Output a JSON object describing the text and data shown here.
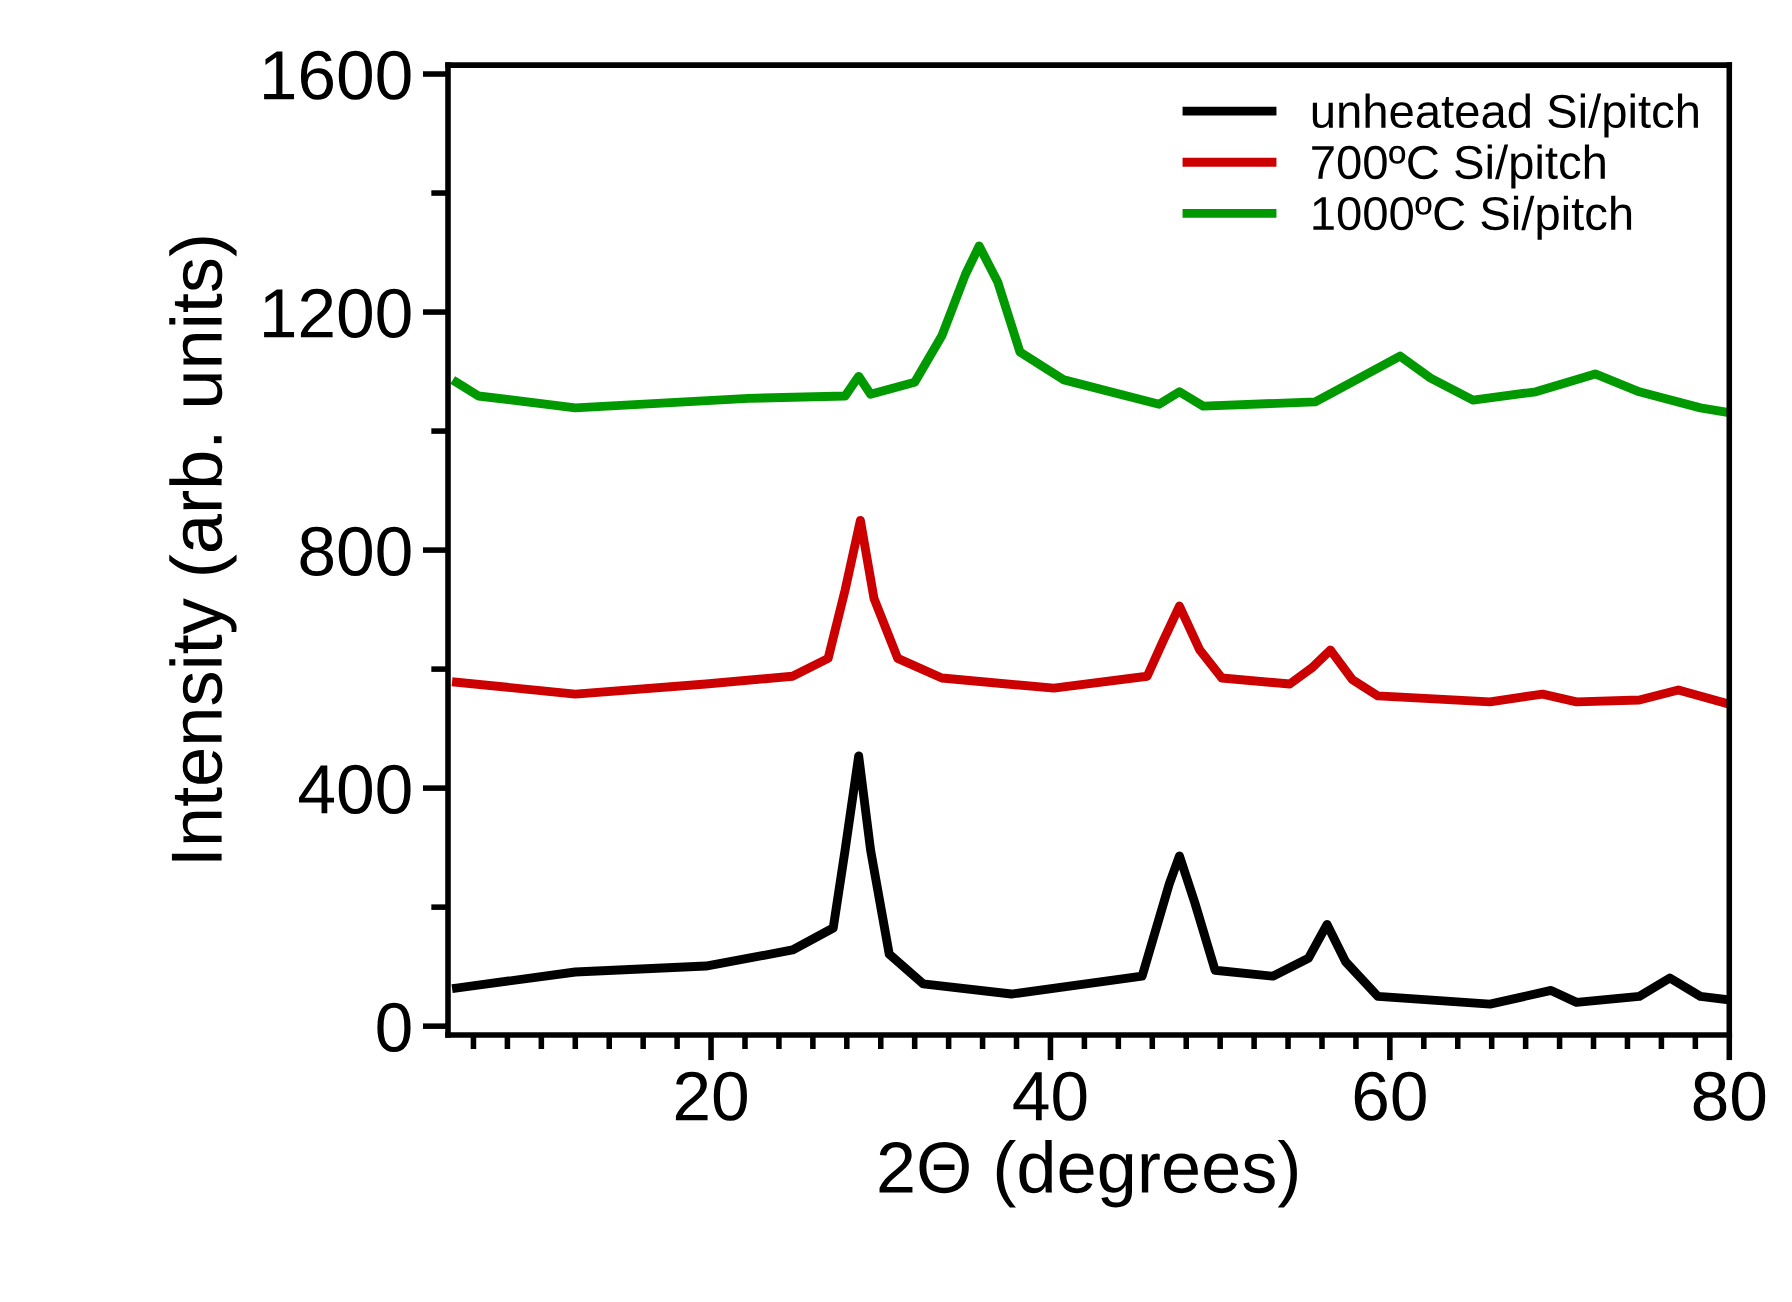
{
  "chart_data": {
    "type": "line",
    "xlabel": "2Θ (degrees)",
    "ylabel": "Intensity (arb. units)",
    "xlim": [
      4.5,
      80
    ],
    "ylim": [
      -15,
      1615
    ],
    "xticks": [
      {
        "value": 6,
        "label": null
      },
      {
        "value": 8,
        "label": null
      },
      {
        "value": 10,
        "label": null
      },
      {
        "value": 12,
        "label": null
      },
      {
        "value": 14,
        "label": null
      },
      {
        "value": 16,
        "label": null
      },
      {
        "value": 18,
        "label": null
      },
      20,
      {
        "value": 22,
        "label": null
      },
      {
        "value": 24,
        "label": null
      },
      {
        "value": 26,
        "label": null
      },
      {
        "value": 28,
        "label": null
      },
      {
        "value": 30,
        "label": null
      },
      {
        "value": 32,
        "label": null
      },
      {
        "value": 34,
        "label": null
      },
      {
        "value": 36,
        "label": null
      },
      {
        "value": 38,
        "label": null
      },
      40,
      {
        "value": 42,
        "label": null
      },
      {
        "value": 44,
        "label": null
      },
      {
        "value": 46,
        "label": null
      },
      {
        "value": 48,
        "label": null
      },
      {
        "value": 50,
        "label": null
      },
      {
        "value": 52,
        "label": null
      },
      {
        "value": 54,
        "label": null
      },
      {
        "value": 56,
        "label": null
      },
      {
        "value": 58,
        "label": null
      },
      60,
      {
        "value": 62,
        "label": null
      },
      {
        "value": 64,
        "label": null
      },
      {
        "value": 66,
        "label": null
      },
      {
        "value": 68,
        "label": null
      },
      {
        "value": 70,
        "label": null
      },
      {
        "value": 72,
        "label": null
      },
      {
        "value": 74,
        "label": null
      },
      {
        "value": 76,
        "label": null
      },
      {
        "value": 78,
        "label": null
      },
      80
    ],
    "yticks": [
      0,
      {
        "value": 200,
        "label": null
      },
      400,
      {
        "value": 600,
        "label": null
      },
      800,
      {
        "value": 1000,
        "label": null
      },
      1200,
      {
        "value": 1400,
        "label": null
      },
      1600
    ],
    "grid": false,
    "legend": "top right",
    "marker": "none",
    "line_style": "solid",
    "series": [
      {
        "name": "unheatead Si/pitch",
        "color": "#000000",
        "x": [
          5.0,
          12.0,
          19.7,
          24.8,
          27.2,
          27.9,
          28.7,
          29.4,
          30.5,
          32.5,
          37.7,
          45.4,
          47.0,
          47.6,
          48.5,
          49.7,
          53.1,
          55.2,
          56.3,
          57.4,
          59.3,
          65.9,
          69.5,
          71.0,
          74.7,
          76.5,
          78.3,
          80.0
        ],
        "values": [
          64,
          91,
          101,
          128,
          165,
          296,
          454,
          296,
          121,
          71,
          54,
          84,
          239,
          286,
          208,
          94,
          84,
          114,
          171,
          108,
          50,
          37,
          60,
          40,
          50,
          81,
          50,
          44
        ]
      },
      {
        "name": "700ºC Si/pitch",
        "color": "#cc0000",
        "x": [
          5.0,
          12.0,
          19.7,
          24.8,
          26.9,
          27.9,
          28.8,
          29.6,
          31.0,
          33.6,
          40.2,
          45.7,
          46.6,
          47.6,
          48.8,
          50.1,
          54.1,
          55.4,
          56.5,
          57.8,
          59.3,
          65.9,
          69.0,
          71.0,
          74.7,
          77.0,
          80.0
        ],
        "values": [
          578,
          558,
          575,
          588,
          618,
          733,
          850,
          719,
          618,
          585,
          568,
          588,
          645,
          706,
          632,
          585,
          575,
          602,
          632,
          582,
          555,
          545,
          558,
          545,
          548,
          565,
          541
        ]
      },
      {
        "name": "1000ºC Si/pitch",
        "color": "#009900",
        "x": [
          5.0,
          6.3,
          12.0,
          22.2,
          27.9,
          28.7,
          29.4,
          32.0,
          33.6,
          35.0,
          35.8,
          36.9,
          38.2,
          40.8,
          46.4,
          47.6,
          49.0,
          55.6,
          56.7,
          58.2,
          60.6,
          62.4,
          64.9,
          68.6,
          72.1,
          74.7,
          78.3,
          79.8
        ],
        "values": [
          1082,
          1059,
          1039,
          1055,
          1059,
          1092,
          1062,
          1082,
          1160,
          1264,
          1311,
          1250,
          1133,
          1086,
          1045,
          1066,
          1042,
          1049,
          1066,
          1089,
          1126,
          1089,
          1052,
          1066,
          1096,
          1066,
          1039,
          1032
        ]
      }
    ]
  }
}
